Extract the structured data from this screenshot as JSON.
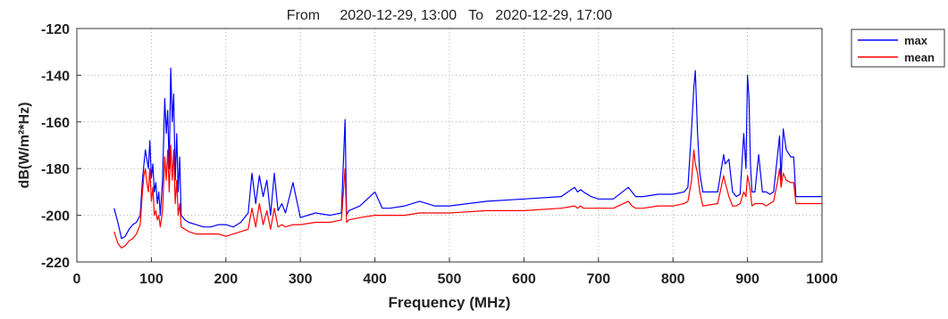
{
  "chart_data": {
    "type": "line",
    "title": "From     2020-12-29, 13:00   To   2020-12-29, 17:00",
    "xlabel": "Frequency (MHz)",
    "ylabel": "dB(W/m²*Hz)",
    "xlim": [
      0,
      1000
    ],
    "ylim": [
      -220,
      -120
    ],
    "xticks": [
      "0",
      "100",
      "200",
      "300",
      "400",
      "500",
      "600",
      "700",
      "800",
      "900",
      "1000"
    ],
    "yticks": [
      "-120",
      "-140",
      "-160",
      "-180",
      "-200",
      "-220"
    ],
    "grid": true,
    "legend_position": "outside-top-right",
    "series": [
      {
        "name": "max",
        "color": "#0000ff",
        "x": [
          50,
          55,
          60,
          65,
          70,
          75,
          80,
          85,
          88,
          90,
          92,
          94,
          96,
          98,
          100,
          102,
          104,
          106,
          108,
          110,
          112,
          115,
          118,
          120,
          122,
          124,
          126,
          128,
          130,
          132,
          134,
          136,
          138,
          140,
          145,
          150,
          160,
          170,
          180,
          190,
          200,
          210,
          220,
          230,
          235,
          240,
          245,
          250,
          255,
          260,
          265,
          270,
          275,
          280,
          290,
          300,
          320,
          340,
          355,
          360,
          362,
          365,
          380,
          400,
          410,
          420,
          440,
          460,
          480,
          500,
          550,
          600,
          650,
          668,
          672,
          676,
          680,
          690,
          700,
          720,
          740,
          745,
          750,
          760,
          780,
          800,
          815,
          820,
          825,
          828,
          830,
          833,
          836,
          840,
          860,
          868,
          870,
          875,
          880,
          885,
          890,
          895,
          898,
          900,
          902,
          904,
          906,
          910,
          915,
          920,
          925,
          930,
          935,
          940,
          943,
          945,
          948,
          952,
          958,
          962,
          965,
          970,
          980,
          1000
        ],
        "y": [
          -197,
          -203,
          -210,
          -209,
          -206,
          -204,
          -203,
          -200,
          -185,
          -178,
          -172,
          -176,
          -180,
          -168,
          -184,
          -178,
          -190,
          -186,
          -195,
          -190,
          -200,
          -185,
          -150,
          -165,
          -155,
          -180,
          -137,
          -160,
          -148,
          -185,
          -165,
          -190,
          -175,
          -200,
          -202,
          -203,
          -204,
          -205,
          -205,
          -204,
          -204,
          -205,
          -203,
          -199,
          -182,
          -195,
          -183,
          -192,
          -185,
          -200,
          -182,
          -198,
          -195,
          -199,
          -186,
          -201,
          -199,
          -200,
          -199,
          -159,
          -200,
          -198,
          -196,
          -190,
          -197,
          -197,
          -196,
          -194,
          -196,
          -196,
          -194,
          -193,
          -192,
          -188,
          -190,
          -189,
          -190,
          -192,
          -193,
          -193,
          -188,
          -190,
          -192,
          -192,
          -191,
          -191,
          -190,
          -188,
          -163,
          -145,
          -138,
          -165,
          -182,
          -190,
          -190,
          -174,
          -178,
          -176,
          -190,
          -192,
          -191,
          -165,
          -180,
          -140,
          -150,
          -178,
          -190,
          -190,
          -174,
          -190,
          -190,
          -191,
          -190,
          -175,
          -166,
          -185,
          -163,
          -172,
          -175,
          -175,
          -192,
          -192,
          -192,
          -192
        ]
      },
      {
        "name": "mean",
        "color": "#ff0000",
        "x": [
          50,
          55,
          60,
          65,
          70,
          75,
          80,
          85,
          88,
          90,
          92,
          94,
          96,
          98,
          100,
          102,
          104,
          106,
          108,
          110,
          112,
          115,
          118,
          120,
          122,
          124,
          126,
          128,
          130,
          132,
          134,
          136,
          138,
          140,
          145,
          150,
          160,
          170,
          180,
          190,
          200,
          210,
          220,
          230,
          235,
          240,
          245,
          250,
          255,
          260,
          265,
          270,
          275,
          280,
          290,
          300,
          320,
          340,
          355,
          360,
          362,
          365,
          380,
          400,
          420,
          440,
          460,
          480,
          500,
          550,
          600,
          650,
          668,
          672,
          676,
          680,
          690,
          700,
          720,
          740,
          745,
          750,
          760,
          780,
          800,
          815,
          820,
          825,
          828,
          830,
          833,
          836,
          840,
          860,
          868,
          870,
          875,
          880,
          885,
          890,
          895,
          898,
          900,
          902,
          904,
          906,
          910,
          915,
          920,
          925,
          930,
          935,
          940,
          943,
          945,
          948,
          952,
          958,
          962,
          965,
          970,
          980,
          1000
        ],
        "y": [
          -207,
          -212,
          -214,
          -213,
          -211,
          -210,
          -208,
          -204,
          -190,
          -183,
          -180,
          -186,
          -190,
          -180,
          -194,
          -188,
          -200,
          -198,
          -202,
          -200,
          -205,
          -198,
          -175,
          -185,
          -172,
          -190,
          -170,
          -185,
          -172,
          -195,
          -185,
          -200,
          -195,
          -205,
          -206,
          -207,
          -208,
          -208,
          -208,
          -208,
          -209,
          -208,
          -207,
          -206,
          -197,
          -205,
          -195,
          -204,
          -198,
          -206,
          -197,
          -205,
          -204,
          -205,
          -204,
          -204,
          -203,
          -203,
          -202,
          -180,
          -203,
          -202,
          -201,
          -200,
          -200,
          -200,
          -199,
          -199,
          -199,
          -198,
          -198,
          -197,
          -196,
          -197,
          -196,
          -197,
          -197,
          -197,
          -197,
          -194,
          -196,
          -197,
          -197,
          -196,
          -196,
          -195,
          -194,
          -185,
          -172,
          -178,
          -182,
          -190,
          -196,
          -195,
          -183,
          -186,
          -192,
          -196,
          -196,
          -195,
          -190,
          -192,
          -183,
          -186,
          -190,
          -196,
          -195,
          -195,
          -195,
          -196,
          -195,
          -194,
          -186,
          -180,
          -188,
          -182,
          -185,
          -186,
          -186,
          -195,
          -195,
          -195,
          -195
        ]
      }
    ]
  }
}
